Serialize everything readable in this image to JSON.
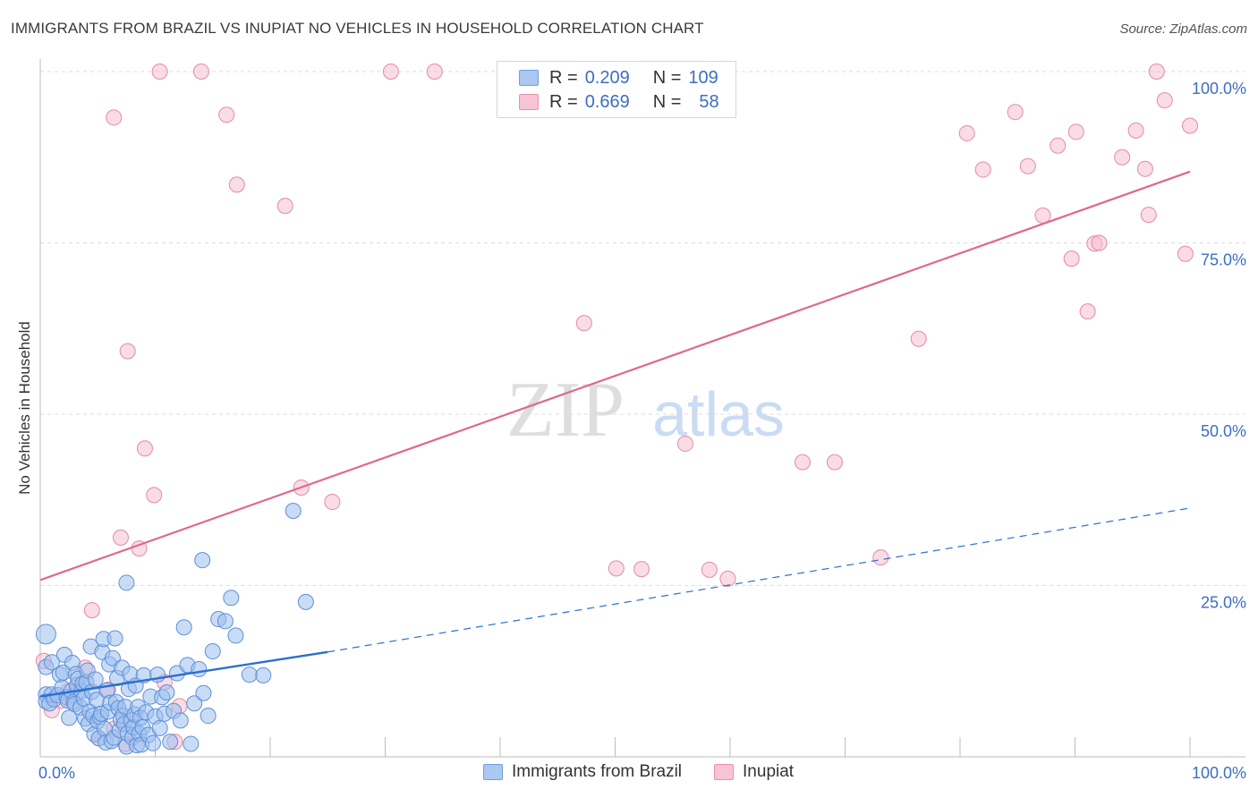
{
  "header": {
    "title": "IMMIGRANTS FROM BRAZIL VS INUPIAT NO VEHICLES IN HOUSEHOLD CORRELATION CHART",
    "source": "Source: ZipAtlas.com"
  },
  "watermark": {
    "zip": "ZIP",
    "atlas": "atlas"
  },
  "legend_top": {
    "rows": [
      {
        "r_label": "R =",
        "r_value": "0.209",
        "n_label": "N =",
        "n_value": "109"
      },
      {
        "r_label": "R =",
        "r_value": "0.669",
        "n_label": "N =",
        "n_value": "58"
      }
    ]
  },
  "legend_bottom": {
    "series1": "Immigrants from Brazil",
    "series2": "Inupiat"
  },
  "colors": {
    "blue_fill": "#9dbfee",
    "blue_stroke": "#5e8fd6",
    "blue_line": "#2a6fd0",
    "pink_fill": "#f6bfcf",
    "pink_stroke": "#e58aa6",
    "pink_line": "#e0668f",
    "axis_text": "#3c6ec4",
    "grid": "#dcdcdc"
  },
  "chart_data": {
    "type": "scatter",
    "title": "IMMIGRANTS FROM BRAZIL VS INUPIAT NO VEHICLES IN HOUSEHOLD CORRELATION CHART",
    "xlabel": "",
    "ylabel": "No Vehicles in Household",
    "xlim": [
      0,
      100
    ],
    "ylim": [
      0,
      100
    ],
    "x_tick_labels": [
      "0.0%",
      "100.0%"
    ],
    "y_tick_labels": [
      {
        "value": 25,
        "label": "25.0%"
      },
      {
        "value": 50,
        "label": "50.0%"
      },
      {
        "value": 75,
        "label": "75.0%"
      },
      {
        "value": 100,
        "label": "100.0%"
      }
    ],
    "series": [
      {
        "name": "Immigrants from Brazil",
        "r": 0.209,
        "n": 109,
        "trend_solid": {
          "x": [
            0,
            25
          ],
          "y": [
            8.8,
            15.3
          ]
        },
        "trend_dashed": {
          "x": [
            25,
            100
          ],
          "y": [
            15.3,
            36.3
          ]
        },
        "points": [
          [
            0.5,
            17.9
          ],
          [
            0.5,
            13.1
          ],
          [
            0.5,
            9.1
          ],
          [
            0.5,
            8.1
          ],
          [
            0.8,
            7.8
          ],
          [
            1.0,
            9.1
          ],
          [
            1.0,
            13.8
          ],
          [
            1.2,
            8.4
          ],
          [
            1.5,
            9.0
          ],
          [
            1.7,
            12.0
          ],
          [
            1.9,
            10.1
          ],
          [
            2.0,
            12.3
          ],
          [
            2.1,
            14.9
          ],
          [
            2.3,
            8.7
          ],
          [
            2.4,
            8.2
          ],
          [
            2.5,
            5.7
          ],
          [
            2.7,
            9.6
          ],
          [
            2.8,
            13.7
          ],
          [
            2.9,
            8.0
          ],
          [
            3.0,
            7.7
          ],
          [
            3.1,
            12.1
          ],
          [
            3.2,
            10.5
          ],
          [
            3.3,
            11.4
          ],
          [
            3.5,
            7.2
          ],
          [
            3.6,
            9.6
          ],
          [
            3.7,
            10.7
          ],
          [
            3.8,
            8.5
          ],
          [
            3.9,
            5.6
          ],
          [
            4.0,
            10.9
          ],
          [
            4.1,
            12.6
          ],
          [
            4.2,
            4.8
          ],
          [
            4.3,
            6.6
          ],
          [
            4.4,
            16.1
          ],
          [
            4.5,
            9.5
          ],
          [
            4.6,
            6.0
          ],
          [
            4.7,
            3.3
          ],
          [
            4.8,
            11.3
          ],
          [
            4.9,
            8.3
          ],
          [
            5.0,
            5.2
          ],
          [
            5.1,
            2.7
          ],
          [
            5.2,
            5.8
          ],
          [
            5.3,
            6.3
          ],
          [
            5.4,
            15.3
          ],
          [
            5.5,
            17.2
          ],
          [
            5.6,
            4.1
          ],
          [
            5.7,
            2.1
          ],
          [
            5.8,
            9.7
          ],
          [
            5.9,
            6.6
          ],
          [
            6.0,
            13.5
          ],
          [
            6.1,
            7.9
          ],
          [
            6.2,
            2.3
          ],
          [
            6.3,
            14.4
          ],
          [
            6.4,
            2.8
          ],
          [
            6.5,
            17.3
          ],
          [
            6.6,
            8.0
          ],
          [
            6.7,
            11.5
          ],
          [
            6.8,
            7.1
          ],
          [
            6.9,
            3.9
          ],
          [
            7.0,
            5.4
          ],
          [
            7.1,
            13.0
          ],
          [
            7.2,
            6.0
          ],
          [
            7.3,
            4.8
          ],
          [
            7.4,
            7.3
          ],
          [
            7.5,
            1.5
          ],
          [
            7.6,
            3.4
          ],
          [
            7.7,
            9.9
          ],
          [
            7.8,
            12.1
          ],
          [
            7.9,
            5.3
          ],
          [
            8.0,
            2.8
          ],
          [
            8.1,
            4.3
          ],
          [
            8.2,
            6.2
          ],
          [
            8.3,
            10.4
          ],
          [
            8.4,
            1.7
          ],
          [
            8.5,
            7.3
          ],
          [
            8.6,
            3.4
          ],
          [
            8.7,
            5.7
          ],
          [
            8.8,
            1.8
          ],
          [
            8.9,
            4.3
          ],
          [
            9.0,
            11.9
          ],
          [
            9.2,
            6.5
          ],
          [
            9.4,
            3.2
          ],
          [
            9.6,
            8.8
          ],
          [
            9.8,
            2.0
          ],
          [
            10.0,
            5.9
          ],
          [
            10.2,
            12.0
          ],
          [
            10.4,
            4.2
          ],
          [
            10.6,
            8.7
          ],
          [
            10.8,
            6.3
          ],
          [
            11.0,
            9.4
          ],
          [
            11.3,
            2.2
          ],
          [
            11.6,
            6.7
          ],
          [
            11.9,
            12.2
          ],
          [
            12.2,
            5.3
          ],
          [
            12.5,
            18.9
          ],
          [
            12.8,
            13.4
          ],
          [
            13.1,
            1.9
          ],
          [
            13.4,
            7.8
          ],
          [
            13.8,
            12.8
          ],
          [
            14.2,
            9.3
          ],
          [
            14.6,
            6.0
          ],
          [
            15.0,
            15.4
          ],
          [
            15.5,
            20.1
          ],
          [
            16.1,
            19.8
          ],
          [
            17.0,
            17.7
          ],
          [
            16.6,
            23.2
          ],
          [
            18.2,
            12.0
          ],
          [
            19.4,
            11.9
          ],
          [
            22.0,
            35.9
          ],
          [
            23.1,
            22.6
          ],
          [
            14.1,
            28.7
          ],
          [
            7.5,
            25.4
          ]
        ]
      },
      {
        "name": "Inupiat",
        "r": 0.669,
        "n": 58,
        "trend_solid": {
          "x": [
            0,
            100
          ],
          "y": [
            25.8,
            85.4
          ]
        },
        "points": [
          [
            0.3,
            14.0
          ],
          [
            1.0,
            6.8
          ],
          [
            1.8,
            8.2
          ],
          [
            2.4,
            9.6
          ],
          [
            3.2,
            9.4
          ],
          [
            3.9,
            13.0
          ],
          [
            4.5,
            21.4
          ],
          [
            5.1,
            2.7
          ],
          [
            5.9,
            9.8
          ],
          [
            6.4,
            4.1
          ],
          [
            7.0,
            32.0
          ],
          [
            7.4,
            1.9
          ],
          [
            8.6,
            30.4
          ],
          [
            9.9,
            38.2
          ],
          [
            10.8,
            10.9
          ],
          [
            11.7,
            2.2
          ],
          [
            12.1,
            7.4
          ],
          [
            9.1,
            45.0
          ],
          [
            7.6,
            59.2
          ],
          [
            6.4,
            93.3
          ],
          [
            10.4,
            100.0
          ],
          [
            14.0,
            100.0
          ],
          [
            16.2,
            93.7
          ],
          [
            17.1,
            83.5
          ],
          [
            21.3,
            80.4
          ],
          [
            22.7,
            39.3
          ],
          [
            25.4,
            37.2
          ],
          [
            30.5,
            100.0
          ],
          [
            34.3,
            100.0
          ],
          [
            47.3,
            63.3
          ],
          [
            50.1,
            27.5
          ],
          [
            52.3,
            27.4
          ],
          [
            56.1,
            45.7
          ],
          [
            58.2,
            27.3
          ],
          [
            59.8,
            26.0
          ],
          [
            66.3,
            43.0
          ],
          [
            69.1,
            43.0
          ],
          [
            73.1,
            29.1
          ],
          [
            76.4,
            61.0
          ],
          [
            80.6,
            91.0
          ],
          [
            82.0,
            85.7
          ],
          [
            84.8,
            94.1
          ],
          [
            85.9,
            86.2
          ],
          [
            87.2,
            79.0
          ],
          [
            88.5,
            89.2
          ],
          [
            89.7,
            72.7
          ],
          [
            90.1,
            91.2
          ],
          [
            91.1,
            65.0
          ],
          [
            91.7,
            74.9
          ],
          [
            92.1,
            75.0
          ],
          [
            94.1,
            87.5
          ],
          [
            95.3,
            91.4
          ],
          [
            96.1,
            85.8
          ],
          [
            96.4,
            79.1
          ],
          [
            97.1,
            100.0
          ],
          [
            97.8,
            95.8
          ],
          [
            99.6,
            73.4
          ],
          [
            100.0,
            92.1
          ]
        ]
      }
    ]
  }
}
